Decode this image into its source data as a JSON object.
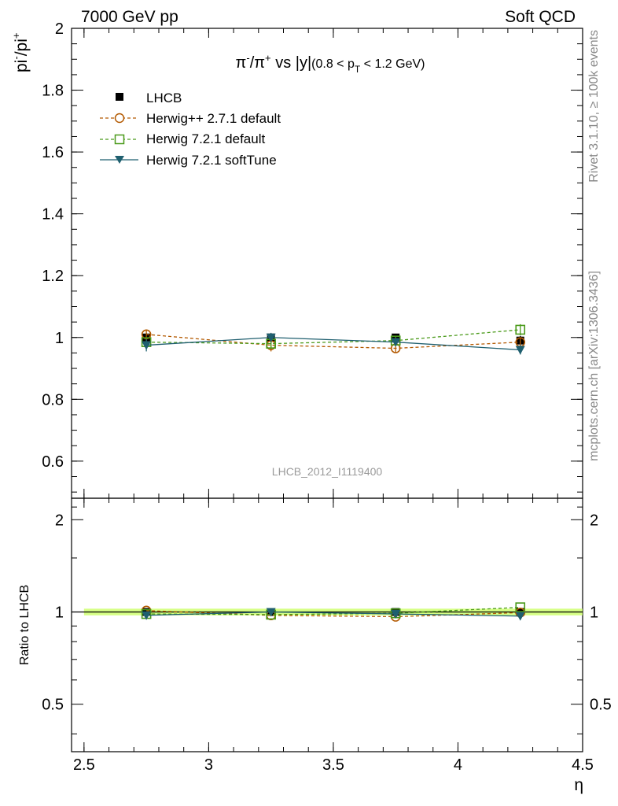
{
  "header": {
    "left": "7000 GeV pp",
    "right": "Soft QCD"
  },
  "side_text": {
    "rivet": "Rivet 3.1.10, ≥ 100k events",
    "mcplots": "mcplots.cern.ch [arXiv:1306.3436]"
  },
  "chart_data": {
    "type": "line",
    "title": "π⁻/π⁺ vs |y| (0.8 < p_T < 1.2 GeV)",
    "xlabel": "η",
    "ylabel": "pi⁻/pi⁺",
    "ratio_ylabel": "Ratio to LHCB",
    "watermark": "LHCB_2012_I1119400",
    "xlim": [
      2.45,
      4.5
    ],
    "ylim": [
      0.48,
      2.0
    ],
    "ratio_ylim": [
      0.35,
      2.35
    ],
    "ratio_scale": "log",
    "x_ticks": [
      2.5,
      3,
      3.5,
      4,
      4.5
    ],
    "x_tick_labels": [
      "2.5",
      "3",
      "3.5",
      "4",
      "4.5"
    ],
    "y_ticks": [
      0.6,
      0.8,
      1,
      1.2,
      1.4,
      1.6,
      1.8,
      2
    ],
    "y_tick_labels": [
      "0.6",
      "0.8",
      "1",
      "1.2",
      "1.4",
      "1.6",
      "1.8",
      "2"
    ],
    "ratio_ticks": [
      0.5,
      1,
      2
    ],
    "ratio_tick_labels": [
      "0.5",
      "1",
      "2"
    ],
    "x": [
      2.75,
      3.25,
      3.75,
      4.25
    ],
    "series": [
      {
        "name": "LHCB",
        "color": "#000000",
        "marker": "square-filled",
        "line": "none",
        "values": [
          1.0,
          1.0,
          1.0,
          0.99
        ],
        "errors": [
          0.015,
          0.012,
          0.012,
          0.015
        ]
      },
      {
        "name": "Herwig++ 2.7.1 default",
        "color": "#b35900",
        "marker": "circle-open",
        "line": "dashed",
        "values": [
          1.01,
          0.975,
          0.965,
          0.985
        ],
        "errors": [
          0.015,
          0.02,
          0.015,
          0.015
        ]
      },
      {
        "name": "Herwig 7.2.1 default",
        "color": "#4a9a1a",
        "marker": "square-open",
        "line": "dashed",
        "values": [
          0.985,
          0.98,
          0.99,
          1.025
        ],
        "errors": [
          0.012,
          0.012,
          0.012,
          0.018
        ]
      },
      {
        "name": "Herwig 7.2.1 softTune",
        "color": "#1f5f6f",
        "marker": "triangle-down-filled",
        "line": "solid",
        "values": [
          0.975,
          1.0,
          0.985,
          0.96
        ],
        "errors": [
          0.02,
          0.015,
          0.012,
          0.015
        ]
      }
    ],
    "legend_position": "top-left",
    "band_color": "#ccff66"
  }
}
